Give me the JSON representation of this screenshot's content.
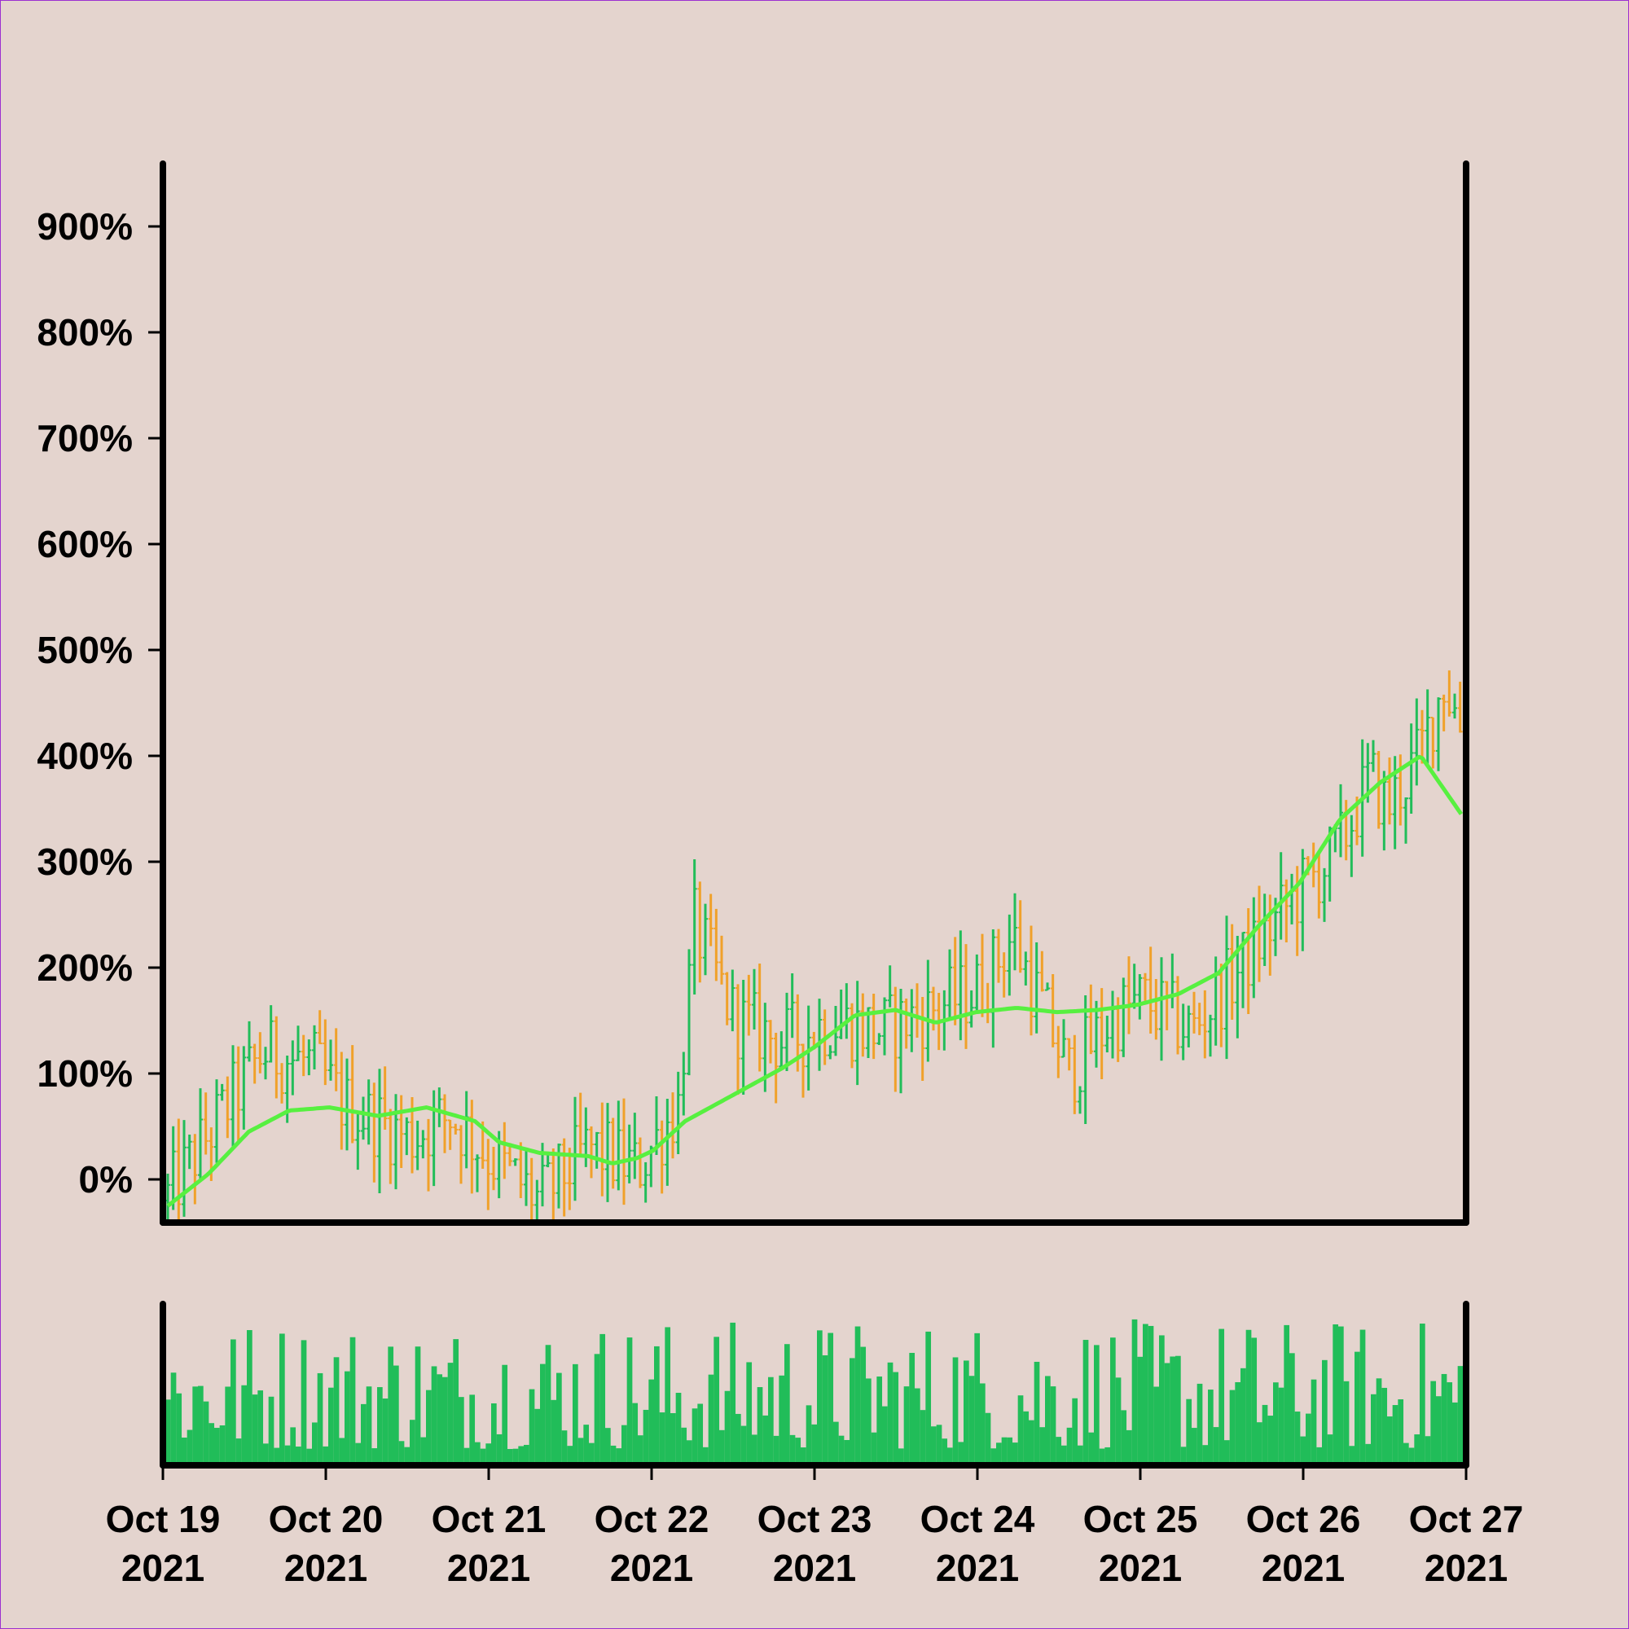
{
  "colors": {
    "background": "#e4d4ce",
    "up": "#21bd59",
    "down": "#f0a12a",
    "moving_average": "#57f040",
    "volume": "#21bd59",
    "axis": "#000000"
  },
  "chart_data": {
    "type": "ohlc",
    "title": "",
    "xlabel": "",
    "ylabel": "",
    "ylim": [
      -35,
      960
    ],
    "y_ticks": [
      0,
      100,
      200,
      300,
      400,
      500,
      600,
      700,
      800,
      900
    ],
    "y_tick_labels": [
      "0%",
      "100%",
      "200%",
      "300%",
      "400%",
      "500%",
      "600%",
      "700%",
      "800%",
      "900%"
    ],
    "x_range_days": [
      "2021-10-19",
      "2021-10-27"
    ],
    "x_tick_labels": [
      {
        "line1": "Oct 19",
        "line2": "2021"
      },
      {
        "line1": "Oct 20",
        "line2": "2021"
      },
      {
        "line1": "Oct 21",
        "line2": "2021"
      },
      {
        "line1": "Oct 22",
        "line2": "2021"
      },
      {
        "line1": "Oct 23",
        "line2": "2021"
      },
      {
        "line1": "Oct 24",
        "line2": "2021"
      },
      {
        "line1": "Oct 25",
        "line2": "2021"
      },
      {
        "line1": "Oct 26",
        "line2": "2021"
      },
      {
        "line1": "Oct 27",
        "line2": "2021"
      }
    ],
    "grid": false,
    "bars_per_day": 30,
    "price_close_anchors": {
      "x_day_fraction": [
        0.0,
        0.3,
        0.6,
        0.9,
        1.1,
        1.5,
        1.75,
        2.0,
        2.3,
        2.6,
        2.9,
        3.15,
        3.25,
        3.5,
        3.8,
        4.1,
        4.4,
        4.7,
        5.0,
        5.2,
        5.55,
        5.8,
        6.0,
        6.3,
        6.6,
        6.9,
        7.2,
        7.4,
        7.5,
        7.7,
        7.85,
        7.95,
        8.0
      ],
      "close_percent": [
        -20,
        50,
        120,
        110,
        70,
        40,
        60,
        20,
        -20,
        30,
        10,
        70,
        240,
        150,
        130,
        150,
        140,
        160,
        180,
        230,
        100,
        150,
        170,
        140,
        200,
        260,
        310,
        380,
        350,
        400,
        470,
        430,
        410
      ]
    },
    "moving_average": {
      "x_day_fraction": [
        0.0,
        0.25,
        0.5,
        0.75,
        1.0,
        1.3,
        1.6,
        1.9,
        2.05,
        2.3,
        2.6,
        2.75,
        2.9,
        3.0,
        3.2,
        3.5,
        3.8,
        4.0,
        4.25,
        4.5,
        4.75,
        5.0,
        5.25,
        5.5,
        5.75,
        6.0,
        6.25,
        6.5,
        6.75,
        7.0,
        7.25,
        7.5,
        7.75,
        8.0
      ],
      "value_percent": [
        -25,
        5,
        45,
        65,
        68,
        60,
        68,
        55,
        35,
        25,
        22,
        15,
        20,
        27,
        55,
        80,
        105,
        125,
        155,
        160,
        148,
        158,
        162,
        158,
        160,
        165,
        175,
        195,
        240,
        280,
        340,
        375,
        400,
        345
      ]
    },
    "volume": {
      "type": "bar",
      "y_axis_labels": false
    }
  }
}
